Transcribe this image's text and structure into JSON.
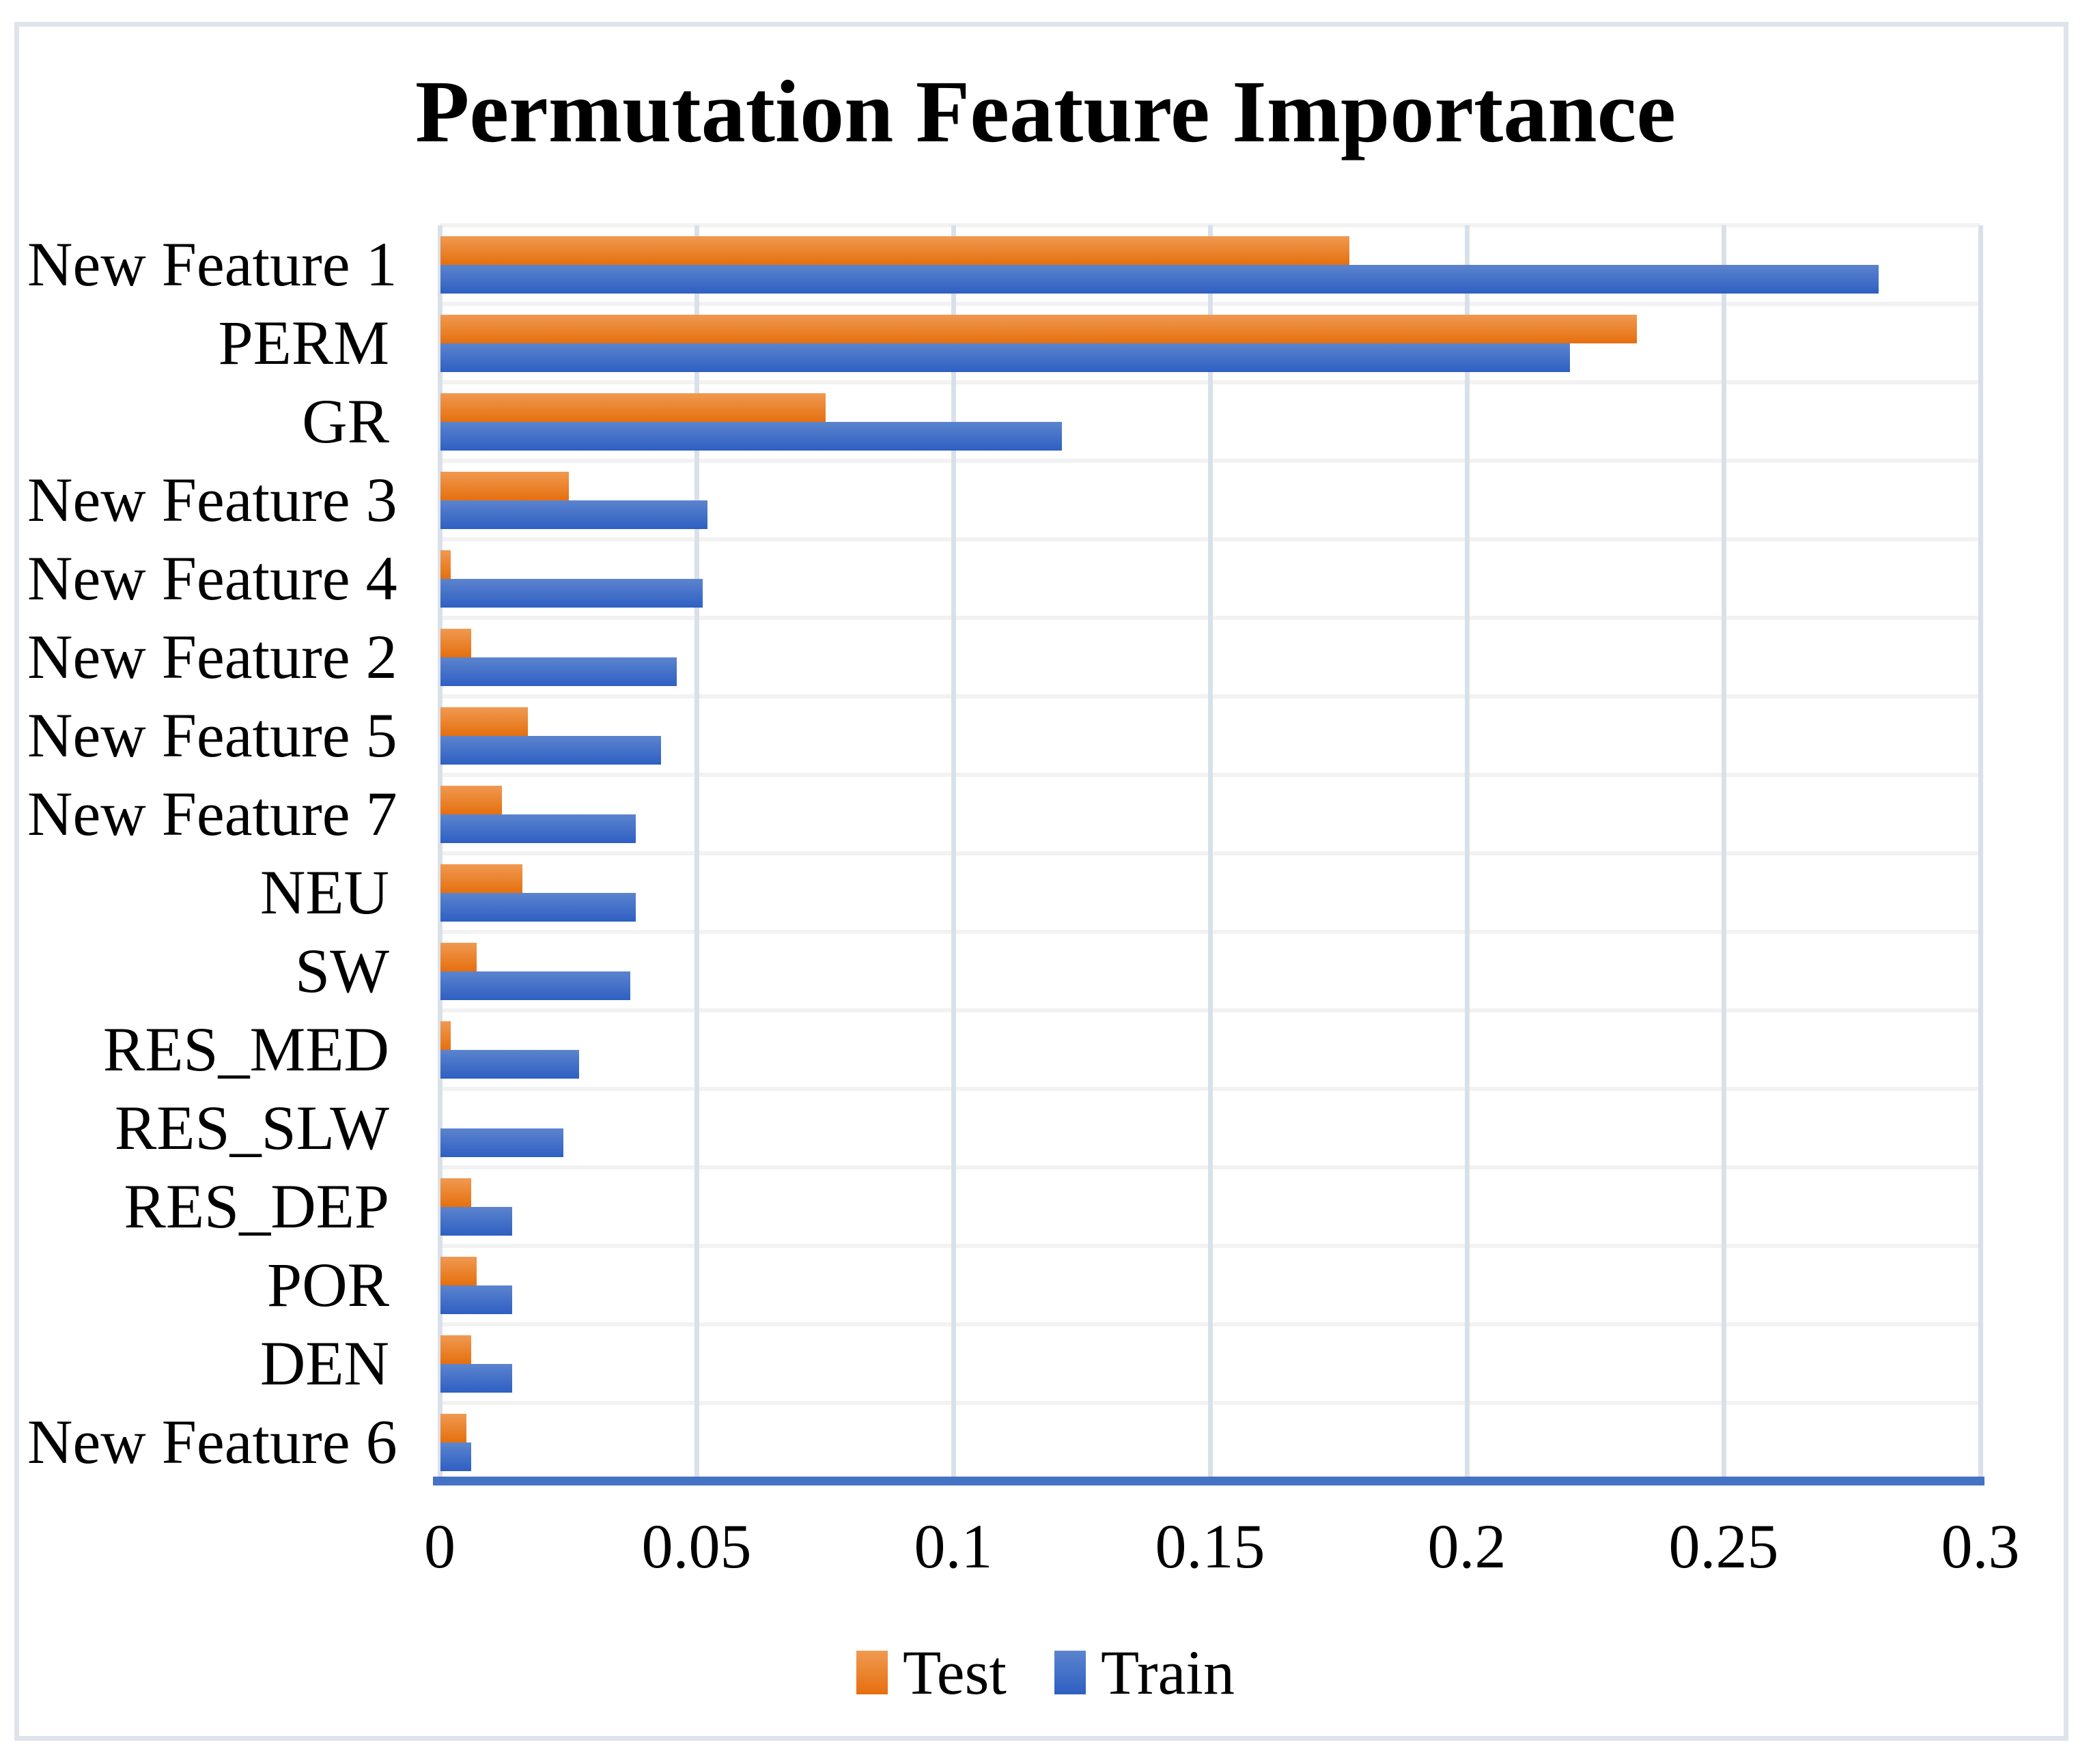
{
  "chart_data": {
    "type": "bar",
    "orientation": "horizontal",
    "title": "Permutation Feature Importance",
    "categories": [
      "New Feature 1",
      "PERM",
      "GR",
      "New Feature 3",
      "New Feature 4",
      "New Feature 2",
      "New Feature 5",
      "New Feature 7",
      "NEU",
      "SW",
      "RES_MED",
      "RES_SLW",
      "RES_DEP",
      "POR",
      "DEN",
      "New Feature 6"
    ],
    "series": [
      {
        "name": "Test",
        "values": [
          0.177,
          0.233,
          0.075,
          0.025,
          0.002,
          0.006,
          0.017,
          0.012,
          0.016,
          0.007,
          0.002,
          0.0,
          0.006,
          0.007,
          0.006,
          0.005
        ]
      },
      {
        "name": "Train",
        "values": [
          0.28,
          0.22,
          0.121,
          0.052,
          0.051,
          0.046,
          0.043,
          0.038,
          0.038,
          0.037,
          0.027,
          0.024,
          0.014,
          0.014,
          0.014,
          0.006
        ]
      }
    ],
    "xlim": [
      0,
      0.3
    ],
    "x_ticks": [
      0,
      0.05,
      0.1,
      0.15,
      0.2,
      0.25,
      0.3
    ],
    "x_tick_labels": [
      "0",
      "0.05",
      "0.1",
      "0.15",
      "0.2",
      "0.25",
      "0.3"
    ],
    "grid": true,
    "legend_position": "bottom"
  },
  "colors": {
    "test_gradient_top": "#f09a51",
    "test_gradient_bottom": "#e56f0e",
    "train_gradient_top": "#5c84ce",
    "train_gradient_bottom": "#2e5fc2",
    "axis_baseline": "#4472c4",
    "vertical_gridline": "#dae0e9",
    "horizontal_gridline": "#f2f2f2",
    "chart_border": "#dfe3ea",
    "text": "#000000"
  }
}
